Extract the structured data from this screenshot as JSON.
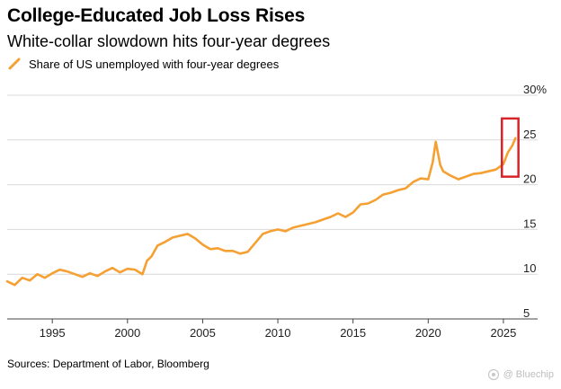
{
  "header": {
    "title": "College-Educated Job Loss Rises",
    "subtitle": "White-collar slowdown hits four-year degrees"
  },
  "legend": {
    "label": "Share of US unemployed with four-year degrees"
  },
  "source": {
    "text": "Sources: Department of Labor, Bloomberg"
  },
  "watermark": {
    "text": "@ Bluechip"
  },
  "colors": {
    "series": "#f5a033",
    "highlight": "#d6252a",
    "grid": "#d9d9d9",
    "axis": "#444444"
  },
  "chart_data": {
    "type": "line",
    "title": "College-Educated Job Loss Rises",
    "subtitle": "White-collar slowdown hits four-year degrees",
    "xlabel": "",
    "ylabel": "",
    "xlim": [
      1992,
      2026.2
    ],
    "ylim": [
      5,
      30
    ],
    "x_ticks": [
      1995,
      2000,
      2005,
      2010,
      2015,
      2020,
      2025
    ],
    "x_tick_labels": [
      "1995",
      "2000",
      "2005",
      "2010",
      "2015",
      "2020",
      "2025"
    ],
    "y_ticks": [
      30,
      25,
      20,
      15,
      10,
      5
    ],
    "y_tick_labels": [
      "30%",
      "25",
      "20",
      "15",
      "10",
      "5"
    ],
    "grid": true,
    "legend_position": "top-left",
    "annotation": {
      "type": "highlight-box",
      "x_range": [
        2024.9,
        2026.0
      ],
      "y_range": [
        20.9,
        27.4
      ]
    },
    "series": [
      {
        "name": "Share of US unemployed with four-year degrees",
        "x": [
          1992.0,
          1992.5,
          1993.0,
          1993.5,
          1994.0,
          1994.5,
          1995.0,
          1995.5,
          1996.0,
          1996.5,
          1997.0,
          1997.5,
          1998.0,
          1998.5,
          1999.0,
          1999.5,
          2000.0,
          2000.5,
          2001.0,
          2001.3,
          2001.6,
          2002.0,
          2002.5,
          2003.0,
          2003.5,
          2004.0,
          2004.5,
          2005.0,
          2005.5,
          2006.0,
          2006.5,
          2007.0,
          2007.5,
          2008.0,
          2008.5,
          2009.0,
          2009.5,
          2010.0,
          2010.5,
          2011.0,
          2011.5,
          2012.0,
          2012.5,
          2013.0,
          2013.5,
          2014.0,
          2014.5,
          2015.0,
          2015.5,
          2016.0,
          2016.5,
          2017.0,
          2017.5,
          2018.0,
          2018.5,
          2019.0,
          2019.5,
          2020.0,
          2020.3,
          2020.5,
          2020.8,
          2021.0,
          2021.5,
          2022.0,
          2022.5,
          2023.0,
          2023.5,
          2024.0,
          2024.5,
          2025.0,
          2025.3,
          2025.6,
          2025.8
        ],
        "values": [
          9.2,
          8.8,
          9.6,
          9.3,
          10.0,
          9.6,
          10.1,
          10.5,
          10.3,
          10.0,
          9.7,
          10.1,
          9.8,
          10.3,
          10.7,
          10.2,
          10.6,
          10.5,
          10.0,
          11.5,
          12.0,
          13.2,
          13.6,
          14.1,
          14.3,
          14.5,
          14.0,
          13.3,
          12.8,
          12.9,
          12.6,
          12.6,
          12.3,
          12.5,
          13.5,
          14.5,
          14.8,
          15.0,
          14.8,
          15.2,
          15.4,
          15.6,
          15.8,
          16.1,
          16.4,
          16.8,
          16.4,
          16.9,
          17.8,
          17.9,
          18.3,
          18.9,
          19.1,
          19.4,
          19.6,
          20.3,
          20.7,
          20.6,
          22.5,
          24.8,
          22.2,
          21.5,
          21.0,
          20.6,
          20.9,
          21.2,
          21.3,
          21.5,
          21.7,
          22.3,
          23.6,
          24.4,
          25.2
        ]
      }
    ]
  }
}
